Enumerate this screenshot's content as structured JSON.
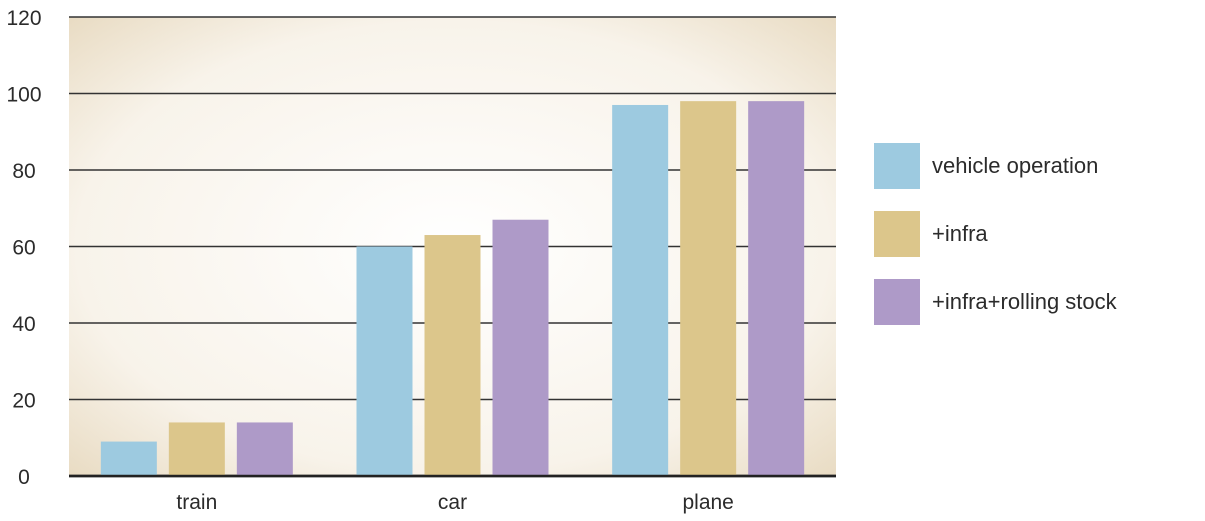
{
  "chart_data": {
    "type": "bar",
    "categories": [
      "train",
      "car",
      "plane"
    ],
    "series": [
      {
        "name": "vehicle operation",
        "values": [
          9,
          60,
          97
        ],
        "color": "#9dcae0"
      },
      {
        "name": "+infra",
        "values": [
          14,
          63,
          98
        ],
        "color": "#dcc68b"
      },
      {
        "name": "+infra+rolling stock",
        "values": [
          14,
          67,
          98
        ],
        "color": "#ae9ac8"
      }
    ],
    "ylim": [
      0,
      120
    ],
    "yticks": [
      "0",
      "20",
      "40",
      "60",
      "80",
      "100",
      "120"
    ],
    "grid": true,
    "legend_position": "right",
    "plot_background": "#f4ede0",
    "title": "",
    "xlabel": "",
    "ylabel": ""
  }
}
